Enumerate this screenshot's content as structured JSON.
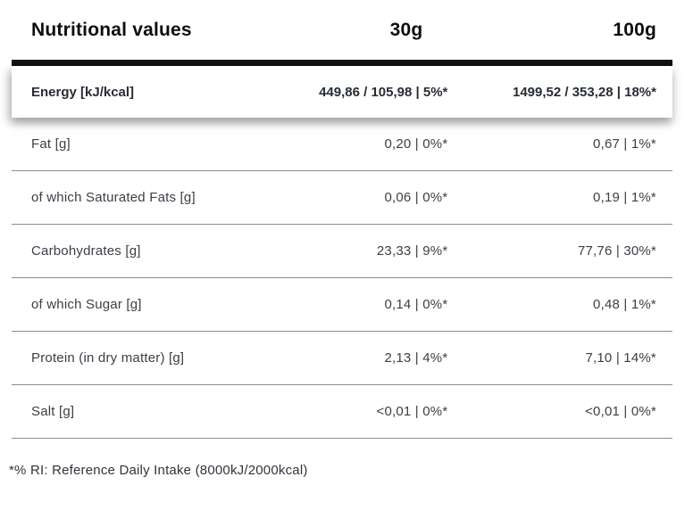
{
  "header": {
    "title": "Nutritional values",
    "col_30g": "30g",
    "col_100g": "100g"
  },
  "energy": {
    "label": "Energy [kJ/kcal]",
    "v30": "449,86 / 105,98 | 5%*",
    "v100": "1499,52 / 353,28 | 18%*"
  },
  "rows": [
    {
      "label": "Fat [g]",
      "v30": "0,20 | 0%*",
      "v100": "0,67 | 1%*"
    },
    {
      "label": "of which Saturated Fats [g]",
      "v30": "0,06 | 0%*",
      "v100": "0,19 | 1%*"
    },
    {
      "label": "Carbohydrates [g]",
      "v30": "23,33 | 9%*",
      "v100": "77,76 | 30%*"
    },
    {
      "label": "of which Sugar [g]",
      "v30": "0,14 | 0%*",
      "v100": "0,48 | 1%*"
    },
    {
      "label": "Protein (in dry matter) [g]",
      "v30": "2,13 | 4%*",
      "v100": "7,10 | 14%*"
    },
    {
      "label": "Salt [g]",
      "v30": "<0,01 | 0%*",
      "v100": "<0,01 | 0%*"
    }
  ],
  "footnote": "*% RI: Reference Daily Intake (8000kJ/2000kcal)",
  "colors": {
    "heading_text": "#0d0d0d",
    "body_text": "#3a4047",
    "top_bar": "#121212",
    "row_divider": "#8c8c8c",
    "background": "#ffffff"
  }
}
